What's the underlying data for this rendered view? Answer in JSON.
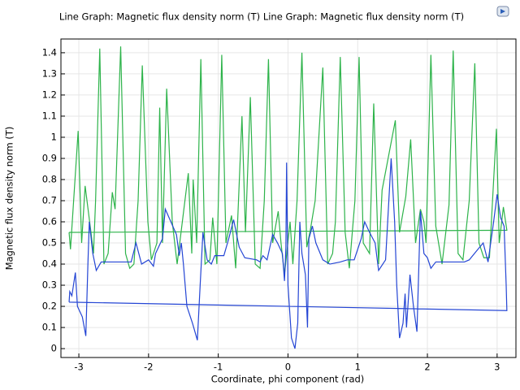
{
  "chart_data": {
    "type": "line",
    "title": "Line Graph: Magnetic flux density norm (T)  Line Graph: Magnetic flux density norm (T)",
    "x_label": "Coordinate, phi component (rad)",
    "y_label": "Magnetic flux density norm (T)",
    "xlim": [
      -3.257,
      3.27
    ],
    "ylim": [
      -0.042,
      1.465
    ],
    "xticks": [
      -3,
      -2,
      -1,
      0,
      1,
      2,
      3
    ],
    "yticks": [
      0,
      0.1,
      0.2,
      0.3,
      0.4,
      0.5,
      0.6,
      0.7,
      0.8,
      0.9,
      1,
      1.1,
      1.2,
      1.3,
      1.4
    ],
    "grid": true,
    "series": [
      {
        "color": "#2db34a",
        "x": [
          -3.14,
          -3.12,
          -3.01,
          -2.96,
          -2.91,
          -2.83,
          -2.79,
          -2.76,
          -2.7,
          -2.64,
          -2.58,
          -2.52,
          -2.48,
          -2.4,
          -2.33,
          -2.27,
          -2.21,
          -2.15,
          -2.09,
          -2.01,
          -1.96,
          -1.88,
          -1.84,
          -1.8,
          -1.74,
          -1.66,
          -1.59,
          -1.43,
          -1.38,
          -1.36,
          -1.31,
          -1.25,
          -1.19,
          -1.12,
          -1.08,
          -1.02,
          -0.95,
          -0.89,
          -0.81,
          -0.75,
          -0.66,
          -0.61,
          -0.54,
          -0.47,
          -0.4,
          -0.34,
          -0.28,
          -0.22,
          -0.14,
          -0.1,
          -0.05,
          0.03,
          0.07,
          0.13,
          0.2,
          0.27,
          0.32,
          0.39,
          0.5,
          0.57,
          0.64,
          0.68,
          0.75,
          0.82,
          0.88,
          0.96,
          1.02,
          1.08,
          1.17,
          1.23,
          1.3,
          1.35,
          1.54,
          1.6,
          1.69,
          1.76,
          1.83,
          1.9,
          1.95,
          1.98,
          2.05,
          2.12,
          2.21,
          2.31,
          2.37,
          2.44,
          2.51,
          2.6,
          2.68,
          2.74,
          2.81,
          2.89,
          2.99,
          3.03,
          3.09,
          3.14,
          -3.14
        ],
        "values": [
          0.55,
          0.47,
          1.03,
          0.5,
          0.77,
          0.56,
          0.45,
          0.7,
          1.42,
          0.4,
          0.45,
          0.74,
          0.66,
          1.43,
          0.45,
          0.38,
          0.4,
          0.7,
          1.34,
          0.6,
          0.42,
          0.5,
          1.14,
          0.5,
          1.23,
          0.6,
          0.4,
          0.83,
          0.45,
          0.8,
          0.5,
          1.37,
          0.4,
          0.42,
          0.62,
          0.4,
          1.39,
          0.5,
          0.63,
          0.38,
          1.1,
          0.55,
          1.19,
          0.4,
          0.38,
          0.7,
          1.37,
          0.5,
          0.65,
          0.5,
          0.35,
          0.6,
          0.4,
          0.7,
          1.4,
          0.48,
          0.56,
          0.7,
          1.33,
          0.4,
          0.45,
          0.6,
          1.38,
          0.55,
          0.38,
          0.7,
          1.38,
          0.5,
          0.45,
          1.16,
          0.4,
          0.75,
          1.08,
          0.55,
          0.72,
          0.99,
          0.5,
          0.66,
          0.6,
          0.5,
          1.39,
          0.58,
          0.4,
          0.68,
          1.41,
          0.45,
          0.42,
          0.7,
          1.35,
          0.5,
          0.43,
          0.43,
          1.04,
          0.5,
          0.67,
          0.56,
          0.55
        ]
      },
      {
        "color": "#2445d4",
        "x": [
          -3.14,
          -3.13,
          -3.1,
          -3.05,
          -3.02,
          -2.95,
          -2.9,
          -2.87,
          -2.85,
          -2.8,
          -2.75,
          -2.68,
          -2.4,
          -2.25,
          -2.18,
          -2.1,
          -2.0,
          -1.93,
          -1.9,
          -1.8,
          -1.76,
          -1.68,
          -1.6,
          -1.56,
          -1.53,
          -1.5,
          -1.45,
          -1.37,
          -1.3,
          -1.26,
          -1.22,
          -1.16,
          -1.1,
          -1.05,
          -0.92,
          -0.85,
          -0.78,
          -0.7,
          -0.62,
          -0.45,
          -0.4,
          -0.36,
          -0.3,
          -0.22,
          -0.15,
          -0.08,
          -0.05,
          -0.03,
          -0.02,
          0.0,
          0.05,
          0.1,
          0.14,
          0.17,
          0.2,
          0.25,
          0.28,
          0.3,
          0.35,
          0.4,
          0.5,
          0.6,
          0.75,
          0.85,
          0.95,
          1.05,
          1.1,
          1.17,
          1.25,
          1.3,
          1.4,
          1.48,
          1.53,
          1.56,
          1.6,
          1.65,
          1.68,
          1.7,
          1.75,
          1.8,
          1.85,
          1.9,
          1.95,
          2.0,
          2.05,
          2.12,
          2.4,
          2.53,
          2.6,
          2.7,
          2.8,
          2.87,
          2.95,
          3.0,
          3.05,
          3.1,
          3.13,
          3.14,
          -3.14
        ],
        "values": [
          0.22,
          0.27,
          0.25,
          0.36,
          0.2,
          0.15,
          0.06,
          0.4,
          0.6,
          0.45,
          0.37,
          0.41,
          0.41,
          0.41,
          0.5,
          0.4,
          0.42,
          0.39,
          0.45,
          0.52,
          0.66,
          0.6,
          0.54,
          0.44,
          0.5,
          0.4,
          0.2,
          0.12,
          0.04,
          0.3,
          0.55,
          0.42,
          0.4,
          0.44,
          0.44,
          0.52,
          0.61,
          0.48,
          0.43,
          0.42,
          0.41,
          0.44,
          0.42,
          0.54,
          0.5,
          0.45,
          0.32,
          0.48,
          0.88,
          0.3,
          0.05,
          0.0,
          0.12,
          0.6,
          0.45,
          0.35,
          0.1,
          0.52,
          0.58,
          0.5,
          0.42,
          0.4,
          0.41,
          0.42,
          0.42,
          0.52,
          0.6,
          0.55,
          0.5,
          0.37,
          0.42,
          0.9,
          0.6,
          0.3,
          0.05,
          0.12,
          0.26,
          0.1,
          0.35,
          0.2,
          0.08,
          0.65,
          0.45,
          0.43,
          0.38,
          0.41,
          0.41,
          0.41,
          0.42,
          0.46,
          0.5,
          0.41,
          0.6,
          0.73,
          0.62,
          0.58,
          0.3,
          0.18,
          0.22
        ]
      }
    ]
  }
}
